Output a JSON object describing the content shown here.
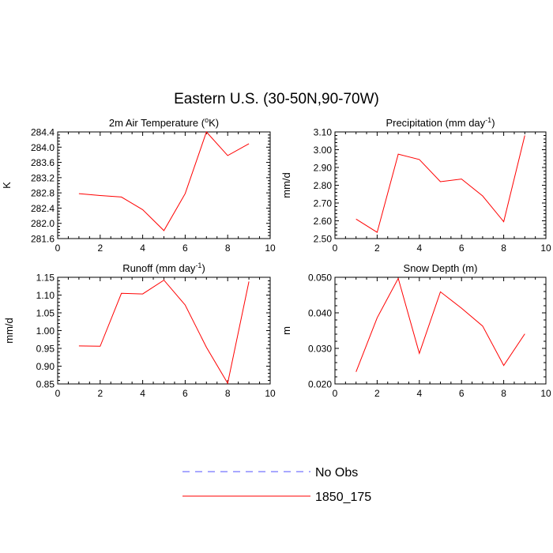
{
  "figure_title": "Eastern U.S. (30-50N,90-70W)",
  "legend": {
    "entries": [
      {
        "label": "No Obs",
        "color": "#5050ff",
        "style": "dashed"
      },
      {
        "label": "1850_175",
        "color": "#ff0000",
        "style": "solid"
      }
    ]
  },
  "chart_data": [
    {
      "type": "line",
      "title": "2m Air Temperature (",
      "title_sup": "o",
      "title_tail": "K)",
      "ylabel": "K",
      "xlim": [
        0,
        10
      ],
      "ylim": [
        281.6,
        284.4
      ],
      "xticks": [
        0,
        2,
        4,
        6,
        8,
        10
      ],
      "xtick_labels": [
        "0",
        "2",
        "4",
        "6",
        "8",
        "10"
      ],
      "yticks": [
        281.6,
        282.0,
        282.4,
        282.8,
        283.2,
        283.6,
        284.0,
        284.4
      ],
      "ytick_labels": [
        "281.6",
        "282.0",
        "282.4",
        "282.8",
        "283.2",
        "283.6",
        "284.0",
        "284.4"
      ],
      "series": [
        {
          "name": "1850_175",
          "x": [
            1,
            2,
            3,
            4,
            5,
            6,
            7,
            8,
            9
          ],
          "y": [
            282.78,
            282.73,
            282.69,
            282.36,
            281.81,
            282.78,
            284.4,
            283.78,
            284.09
          ]
        }
      ]
    },
    {
      "type": "line",
      "title": "Precipitation (mm day",
      "title_sup": "-1",
      "title_tail": ")",
      "ylabel": "mm/d",
      "xlim": [
        0,
        10
      ],
      "ylim": [
        2.5,
        3.1
      ],
      "xticks": [
        0,
        2,
        4,
        6,
        8,
        10
      ],
      "xtick_labels": [
        "0",
        "2",
        "4",
        "6",
        "8",
        "10"
      ],
      "yticks": [
        2.5,
        2.6,
        2.7,
        2.8,
        2.9,
        3.0,
        3.1
      ],
      "ytick_labels": [
        "2.50",
        "2.60",
        "2.70",
        "2.80",
        "2.90",
        "3.00",
        "3.10"
      ],
      "series": [
        {
          "name": "1850_175",
          "x": [
            1,
            2,
            3,
            4,
            5,
            6,
            7,
            8,
            9
          ],
          "y": [
            2.61,
            2.535,
            2.975,
            2.945,
            2.82,
            2.835,
            2.74,
            2.595,
            3.08
          ]
        }
      ]
    },
    {
      "type": "line",
      "title": "Runoff (mm day",
      "title_sup": "-1",
      "title_tail": ")",
      "ylabel": "mm/d",
      "xlim": [
        0,
        10
      ],
      "ylim": [
        0.85,
        1.15
      ],
      "xticks": [
        0,
        2,
        4,
        6,
        8,
        10
      ],
      "xtick_labels": [
        "0",
        "2",
        "4",
        "6",
        "8",
        "10"
      ],
      "yticks": [
        0.85,
        0.9,
        0.95,
        1.0,
        1.05,
        1.1,
        1.15
      ],
      "ytick_labels": [
        "0.85",
        "0.90",
        "0.95",
        "1.00",
        "1.05",
        "1.10",
        "1.15"
      ],
      "series": [
        {
          "name": "1850_175",
          "x": [
            1,
            2,
            3,
            4,
            5,
            6,
            7,
            8,
            9
          ],
          "y": [
            0.957,
            0.956,
            1.105,
            1.103,
            1.142,
            1.072,
            0.953,
            0.852,
            1.138
          ]
        }
      ]
    },
    {
      "type": "line",
      "title": "Snow Depth (m)",
      "title_sup": "",
      "title_tail": "",
      "ylabel": "m",
      "xlim": [
        0,
        10
      ],
      "ylim": [
        0.02,
        0.05
      ],
      "xticks": [
        0,
        2,
        4,
        6,
        8,
        10
      ],
      "xtick_labels": [
        "0",
        "2",
        "4",
        "6",
        "8",
        "10"
      ],
      "yticks": [
        0.02,
        0.03,
        0.04,
        0.05
      ],
      "ytick_labels": [
        "0.020",
        "0.030",
        "0.040",
        "0.050"
      ],
      "series": [
        {
          "name": "1850_175",
          "x": [
            1,
            2,
            3,
            4,
            5,
            6,
            7,
            8,
            9
          ],
          "y": [
            0.0234,
            0.0386,
            0.0497,
            0.0286,
            0.0459,
            0.0413,
            0.0363,
            0.0252,
            0.0341
          ]
        }
      ]
    }
  ]
}
